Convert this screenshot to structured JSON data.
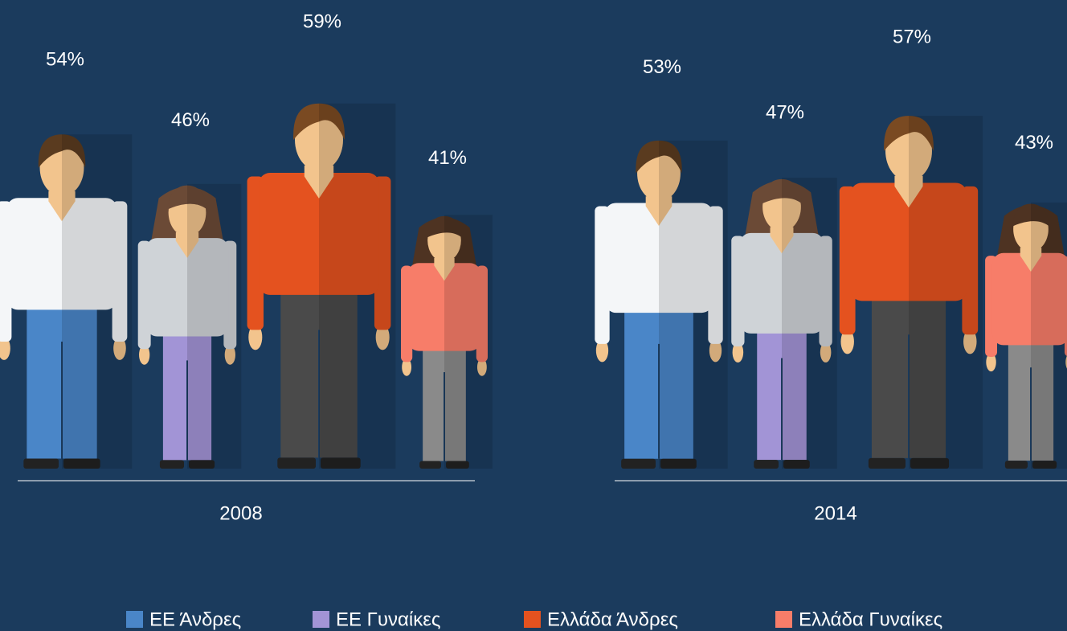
{
  "chart_data": {
    "type": "pictogram",
    "categories": [
      "2008",
      "2014"
    ],
    "series": [
      {
        "name": "ΕΕ Άνδρες",
        "color": "#4a86c8",
        "values": [
          54,
          53
        ],
        "value_labels": [
          "54%",
          "53%"
        ]
      },
      {
        "name": "ΕΕ Γυναίκες",
        "color": "#a294d6",
        "values": [
          46,
          47
        ],
        "value_labels": [
          "46%",
          "47%"
        ]
      },
      {
        "name": "Ελλάδα Άνδρες",
        "color": "#e4521f",
        "values": [
          59,
          57
        ],
        "value_labels": [
          "59%",
          "57%"
        ]
      },
      {
        "name": "Ελλάδα Γυναίκες",
        "color": "#f77d69",
        "values": [
          41,
          43
        ],
        "value_labels": [
          "41%",
          "43%"
        ]
      }
    ]
  }
}
